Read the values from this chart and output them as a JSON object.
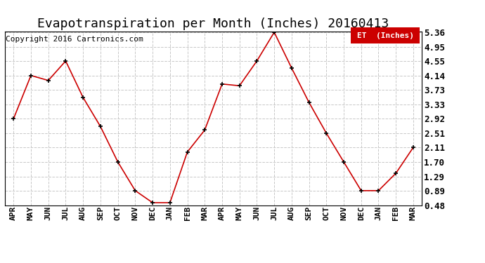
{
  "title": "Evapotranspiration per Month (Inches) 20160413",
  "copyright": "Copyright 2016 Cartronics.com",
  "legend_label": "ET  (Inches)",
  "legend_bg": "#cc0000",
  "legend_text_color": "#ffffff",
  "x_labels": [
    "APR",
    "MAY",
    "JUN",
    "JUL",
    "AUG",
    "SEP",
    "OCT",
    "NOV",
    "DEC",
    "JAN",
    "FEB",
    "MAR",
    "APR",
    "MAY",
    "JUN",
    "JUL",
    "AUG",
    "SEP",
    "OCT",
    "NOV",
    "DEC",
    "JAN",
    "FEB",
    "MAR"
  ],
  "y_values": [
    2.92,
    4.14,
    4.0,
    4.55,
    3.52,
    2.7,
    1.7,
    0.89,
    0.55,
    0.55,
    1.98,
    2.6,
    3.9,
    3.85,
    4.55,
    5.36,
    4.35,
    3.38,
    2.51,
    1.7,
    0.89,
    0.89,
    1.38,
    2.11
  ],
  "ylim_min": 0.48,
  "ylim_max": 5.36,
  "yticks": [
    0.48,
    0.89,
    1.29,
    1.7,
    2.11,
    2.51,
    2.92,
    3.33,
    3.73,
    4.14,
    4.55,
    4.95,
    5.36
  ],
  "line_color": "#cc0000",
  "marker_color": "#000000",
  "grid_color": "#c8c8c8",
  "bg_color": "#ffffff",
  "plot_bg_color": "#ffffff",
  "border_color": "#000000",
  "title_fontsize": 13,
  "copyright_fontsize": 8,
  "tick_fontsize": 8,
  "ytick_fontsize": 9
}
